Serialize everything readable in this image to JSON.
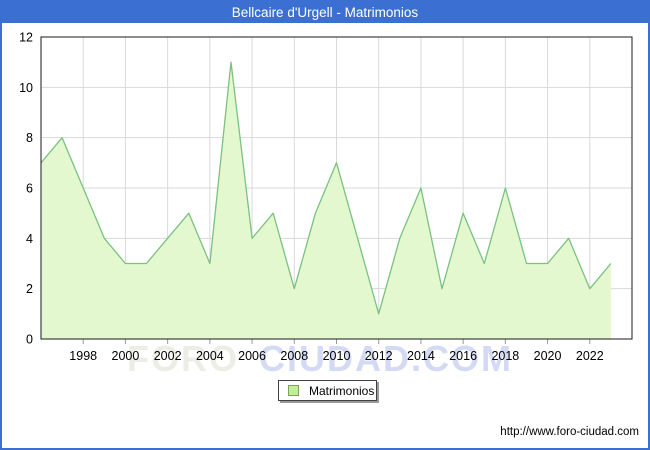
{
  "window": {
    "title": "Bellcaire d'Urgell - Matrimonios"
  },
  "colors": {
    "titlebar_bg": "#3b70d2",
    "frame_border": "#3b70d2",
    "plot_border": "#1a1a1a",
    "grid": "#d9d9d9",
    "tick": "#9a9a9a",
    "area_fill": "#e4f8d0",
    "line": "#79c27f",
    "legend_swatch_fill": "#c1ef96",
    "legend_swatch_border": "#80a060",
    "watermark_part1": "#eceee6",
    "watermark_part2": "#d4daf4",
    "label_text": "#000000"
  },
  "chart_data": {
    "type": "area",
    "title": "Bellcaire d'Urgell - Matrimonios",
    "series_name": "Matrimonios",
    "x": [
      1996,
      1997,
      1998,
      1999,
      2000,
      2001,
      2002,
      2003,
      2004,
      2005,
      2006,
      2007,
      2008,
      2009,
      2010,
      2011,
      2012,
      2013,
      2014,
      2015,
      2016,
      2017,
      2018,
      2019,
      2020,
      2021,
      2022,
      2023
    ],
    "values": [
      7,
      8,
      6,
      4,
      3,
      3,
      4,
      5,
      3,
      11,
      4,
      5,
      2,
      5,
      7,
      4,
      1,
      4,
      6,
      2,
      5,
      3,
      6,
      3,
      3,
      4,
      2,
      3
    ],
    "xlim": [
      1996,
      2024
    ],
    "ylim": [
      0,
      12
    ],
    "x_ticks": [
      1998,
      2000,
      2002,
      2004,
      2006,
      2008,
      2010,
      2012,
      2014,
      2016,
      2018,
      2020,
      2022
    ],
    "y_ticks": [
      0,
      2,
      4,
      6,
      8,
      10,
      12
    ],
    "grid": true,
    "legend_position": "bottom-center"
  },
  "legend": {
    "label": "Matrimonios"
  },
  "watermark": {
    "part1": "FORO",
    "part2": "CIUDAD.COM"
  },
  "footer": {
    "url": "http://www.foro-ciudad.com"
  }
}
